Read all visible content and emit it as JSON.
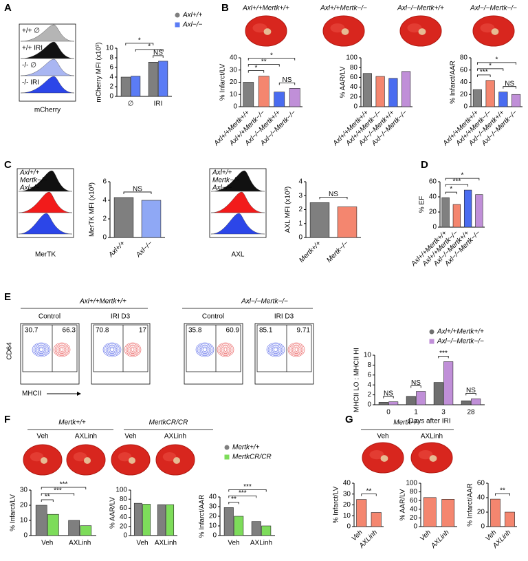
{
  "panels": [
    "A",
    "B",
    "C",
    "D",
    "E",
    "F",
    "G"
  ],
  "images": {
    "A": {
      "labels": [
        "+/+ ∅",
        "+/+ IRI",
        "-/- ∅",
        "-/- IRI"
      ],
      "xlabel": "mCherry"
    },
    "B": {
      "labels": [
        "Axl+/+Mertk+/+",
        "Axl+/+Mertk−/−",
        "Axl−/−Mertk+/+",
        "Axl−/−Mertk−/−"
      ]
    },
    "C": {
      "mertk": {
        "labels": [
          "Axl+/+",
          "Mertk−/−",
          "Axl−/−"
        ],
        "xlabel": "MerTK"
      },
      "axl": {
        "labels": [
          "Axl+/+",
          "Mertk−/−",
          "Axl−/−"
        ],
        "xlabel": "AXL"
      }
    },
    "E": {
      "groups": [
        "Axl+/+Mertk+/+",
        "Axl−/−Mertk−/−"
      ],
      "conditions": [
        "Control",
        "IRI D3",
        "Control",
        "IRI D3"
      ],
      "gates": [
        30.7,
        66.3,
        70.8,
        17,
        35.8,
        60.9,
        85.1,
        9.71
      ],
      "yaxis": "CD64",
      "xaxis": "MHCII"
    },
    "F": {
      "groups": [
        "Mertk+/+",
        "MertkCR/CR"
      ],
      "conditions": [
        "Veh",
        "AXLinh",
        "Veh",
        "AXLinh"
      ]
    },
    "G": {
      "group": "Mertk−/−",
      "conditions": [
        "Veh",
        "AXLinh"
      ]
    }
  },
  "chart_data": [
    {
      "type": "bar",
      "ylabel": "mCherry MFI (x10³)",
      "categories": [
        "∅",
        "IRI"
      ],
      "series": [
        {
          "name": "Axl+/+",
          "color": "#7f7f7f",
          "values": [
            4.0,
            7.1
          ]
        },
        {
          "name": "Axl−/−",
          "color": "#5b7cf5",
          "values": [
            4.2,
            7.3
          ]
        }
      ],
      "ylim": [
        0,
        10
      ],
      "yticks": [
        0,
        2,
        4,
        6,
        8,
        10
      ],
      "legend": "top",
      "annotations": [
        {
          "text": "NS",
          "bars": [
            2,
            3
          ]
        },
        {
          "text": "*",
          "bars": [
            1,
            3
          ]
        },
        {
          "text": "*",
          "bars": [
            0,
            2
          ]
        }
      ]
    },
    {
      "type": "bar",
      "ylabel": "% Infarct/LV",
      "rotate_labels": true,
      "categories": [
        "Axl+/+Mertk+/+",
        "Axl+/+Mertk−/−",
        "Axl−/−Mertk+/+",
        "Axl−/−Mertk−/−"
      ],
      "series": [
        {
          "color": [
            "#808080",
            "#f4866f",
            "#4a6cf0",
            "#c08fd8"
          ],
          "values": [
            20,
            25,
            12,
            15
          ]
        }
      ],
      "ylim": [
        0,
        40
      ],
      "yticks": [
        0,
        10,
        20,
        30,
        40
      ],
      "annotations": [
        {
          "text": "*",
          "bars": [
            0,
            1
          ]
        },
        {
          "text": "NS",
          "bars": [
            2,
            3
          ]
        },
        {
          "text": "**",
          "bars": [
            0,
            2
          ]
        },
        {
          "text": "*",
          "bars": [
            0,
            3
          ]
        }
      ]
    },
    {
      "type": "bar",
      "ylabel": "% AAR/LV",
      "rotate_labels": true,
      "categories": [
        "Axl+/+Mertk+/+",
        "Axl+/+Mertk−/−",
        "Axl−/−Mertk+/+",
        "Axl−/−Mertk−/−"
      ],
      "series": [
        {
          "color": [
            "#808080",
            "#f4866f",
            "#4a6cf0",
            "#c08fd8"
          ],
          "values": [
            68,
            62,
            58,
            72
          ]
        }
      ],
      "ylim": [
        0,
        100
      ],
      "yticks": [
        0,
        20,
        40,
        60,
        80,
        100
      ]
    },
    {
      "type": "bar",
      "ylabel": "% Infarct/AAR",
      "rotate_labels": true,
      "categories": [
        "Axl+/+Mertk+/+",
        "Axl+/+Mertk−/−",
        "Axl−/−Mertk+/+",
        "Axl−/−Mertk−/−"
      ],
      "series": [
        {
          "color": [
            "#808080",
            "#f4866f",
            "#4a6cf0",
            "#c08fd8"
          ],
          "values": [
            28,
            43,
            24,
            20
          ]
        }
      ],
      "ylim": [
        0,
        80
      ],
      "yticks": [
        0,
        20,
        40,
        60,
        80
      ],
      "annotations": [
        {
          "text": "***",
          "bars": [
            0,
            1
          ]
        },
        {
          "text": "NS",
          "bars": [
            2,
            3
          ]
        },
        {
          "text": "*",
          "bars": [
            0,
            2
          ]
        },
        {
          "text": "*",
          "bars": [
            0,
            3
          ]
        }
      ]
    },
    {
      "type": "bar",
      "ylabel": "MerTK MFI (x10³)",
      "rotate_labels": true,
      "categories": [
        "Axl+/+",
        "Axl−/−"
      ],
      "series": [
        {
          "color": [
            "#7f7f7f",
            "#8fa8f5"
          ],
          "values": [
            4.3,
            4.0
          ]
        }
      ],
      "ylim": [
        0,
        6
      ],
      "yticks": [
        0,
        2,
        4,
        6
      ],
      "annotations": [
        {
          "text": "NS",
          "bars": [
            0,
            1
          ]
        }
      ]
    },
    {
      "type": "bar",
      "ylabel": "AXL MFI (x10³)",
      "rotate_labels": true,
      "categories": [
        "Mertk+/+",
        "Mertk−/−"
      ],
      "series": [
        {
          "color": [
            "#7f7f7f",
            "#f4866f"
          ],
          "values": [
            2.5,
            2.2
          ]
        }
      ],
      "ylim": [
        0,
        4
      ],
      "yticks": [
        0,
        1,
        2,
        3,
        4
      ],
      "annotations": [
        {
          "text": "NS",
          "bars": [
            0,
            1
          ]
        }
      ]
    },
    {
      "type": "bar",
      "ylabel": "% EF",
      "rotate_labels": true,
      "categories": [
        "Axl+/+Mertk+/+",
        "Axl+/+Mertk−/−",
        "Axl−/−Mertk+/+",
        "Axl−/−Mertk−/−"
      ],
      "series": [
        {
          "color": [
            "#808080",
            "#f4866f",
            "#4a6cf0",
            "#c08fd8"
          ],
          "values": [
            39,
            30,
            49,
            43
          ]
        }
      ],
      "ylim": [
        0,
        60
      ],
      "yticks": [
        0,
        20,
        40,
        60
      ],
      "annotations": [
        {
          "text": "*",
          "bars": [
            0,
            1
          ]
        },
        {
          "text": "***",
          "bars": [
            0,
            2
          ]
        },
        {
          "text": "*",
          "bars": [
            0,
            3
          ]
        }
      ]
    },
    {
      "type": "bar",
      "ylabel": "MHCII LO : MHCII HI",
      "xlabel": "Days after IRI",
      "categories": [
        "0",
        "1",
        "3",
        "28"
      ],
      "series": [
        {
          "name": "Axl+/+Mertk+/+",
          "color": "#6f6f6f",
          "values": [
            0.5,
            1.7,
            4.5,
            0.8
          ]
        },
        {
          "name": "Axl−/−Mertk−/−",
          "color": "#c08fd8",
          "values": [
            0.6,
            2.7,
            8.7,
            1.2
          ]
        }
      ],
      "ylim": [
        0,
        10
      ],
      "yticks": [
        0,
        2,
        4,
        6,
        8,
        10
      ],
      "legend": "top-right",
      "annotations": [
        {
          "text": "NS",
          "bars": [
            0,
            1
          ]
        },
        {
          "text": "NS",
          "bars": [
            2,
            3
          ]
        },
        {
          "text": "***",
          "bars": [
            4,
            5
          ]
        },
        {
          "text": "NS",
          "bars": [
            6,
            7
          ]
        }
      ]
    },
    {
      "type": "bar",
      "ylabel": "% Infarct/LV",
      "categories": [
        "Veh",
        "AXLinh"
      ],
      "series": [
        {
          "color": "#7f7f7f",
          "values": [
            20,
            10
          ]
        },
        {
          "color": "#7ddc5a",
          "values": [
            14,
            6.5
          ]
        }
      ],
      "ylim": [
        0,
        30
      ],
      "yticks": [
        0,
        10,
        20,
        30
      ],
      "annotations": [
        {
          "text": "**",
          "bars": [
            0,
            1
          ]
        },
        {
          "text": "***",
          "bars": [
            0,
            2
          ]
        },
        {
          "text": "***",
          "bars": [
            0,
            3
          ]
        }
      ]
    },
    {
      "type": "bar",
      "ylabel": "% AAR/LV",
      "categories": [
        "Veh",
        "AXLinh"
      ],
      "series": [
        {
          "color": "#7f7f7f",
          "values": [
            71,
            68
          ]
        },
        {
          "color": "#7ddc5a",
          "values": [
            69,
            68
          ]
        }
      ],
      "ylim": [
        0,
        100
      ],
      "yticks": [
        0,
        20,
        40,
        60,
        80,
        100
      ]
    },
    {
      "type": "bar",
      "ylabel": "% Infarct/AAR",
      "categories": [
        "Veh",
        "AXLinh"
      ],
      "series": [
        {
          "name": "Mertk+/+",
          "color": "#7f7f7f",
          "values": [
            29,
            14.5
          ]
        },
        {
          "name": "MertkCR/CR",
          "color": "#7ddc5a",
          "values": [
            20,
            10
          ]
        }
      ],
      "ylim": [
        0,
        40
      ],
      "yticks": [
        0,
        10,
        20,
        30,
        40
      ],
      "legend": "top",
      "annotations": [
        {
          "text": "**",
          "bars": [
            0,
            1
          ]
        },
        {
          "text": "***",
          "bars": [
            0,
            2
          ]
        },
        {
          "text": "***",
          "bars": [
            0,
            3
          ]
        }
      ]
    },
    {
      "type": "bar",
      "ylabel": "% Infarct/LV",
      "rotate_labels": true,
      "categories": [
        "Veh",
        "AXLinh"
      ],
      "series": [
        {
          "color": "#f4866f",
          "values": [
            25,
            13
          ]
        }
      ],
      "ylim": [
        0,
        40
      ],
      "yticks": [
        0,
        10,
        20,
        30,
        40
      ],
      "annotations": [
        {
          "text": "**",
          "bars": [
            0,
            1
          ]
        }
      ]
    },
    {
      "type": "bar",
      "ylabel": "% AAR/LV",
      "rotate_labels": true,
      "categories": [
        "Veh",
        "AXLinh"
      ],
      "series": [
        {
          "color": "#f4866f",
          "values": [
            67,
            63
          ]
        }
      ],
      "ylim": [
        0,
        100
      ],
      "yticks": [
        0,
        20,
        40,
        60,
        80,
        100
      ]
    },
    {
      "type": "bar",
      "ylabel": "% Infarct/AAR",
      "rotate_labels": true,
      "categories": [
        "Veh",
        "AXLinh"
      ],
      "series": [
        {
          "color": "#f4866f",
          "values": [
            38,
            20
          ]
        }
      ],
      "ylim": [
        0,
        60
      ],
      "yticks": [
        0,
        20,
        40,
        60
      ],
      "annotations": [
        {
          "text": "**",
          "bars": [
            0,
            1
          ]
        }
      ]
    }
  ]
}
